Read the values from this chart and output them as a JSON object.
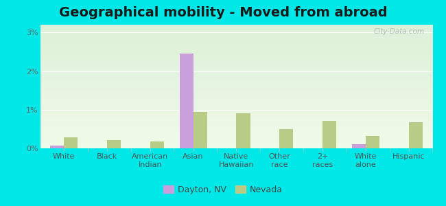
{
  "title": "Geographical mobility - Moved from abroad",
  "categories": [
    "White",
    "Black",
    "American\nIndian",
    "Asian",
    "Native\nHawaiian",
    "Other\nrace",
    "2+\nraces",
    "White\nalone",
    "Hispanic"
  ],
  "dayton_values": [
    0.08,
    0.0,
    0.0,
    2.45,
    0.0,
    0.0,
    0.0,
    0.1,
    0.0
  ],
  "nevada_values": [
    0.28,
    0.22,
    0.18,
    0.95,
    0.9,
    0.5,
    0.72,
    0.32,
    0.68
  ],
  "dayton_color": "#c9a0dc",
  "nevada_color": "#b8cc88",
  "bar_width": 0.32,
  "ylim": [
    0,
    3.2
  ],
  "yticks": [
    0,
    1,
    2,
    3
  ],
  "ytick_labels": [
    "0%",
    "1%",
    "2%",
    "3%"
  ],
  "bg_top_color": "#ddf0d8",
  "bg_bottom_color": "#f0fae8",
  "outer_background": "#00e8e8",
  "title_fontsize": 14,
  "tick_fontsize": 8,
  "legend_fontsize": 9,
  "watermark": "City-Data.com"
}
